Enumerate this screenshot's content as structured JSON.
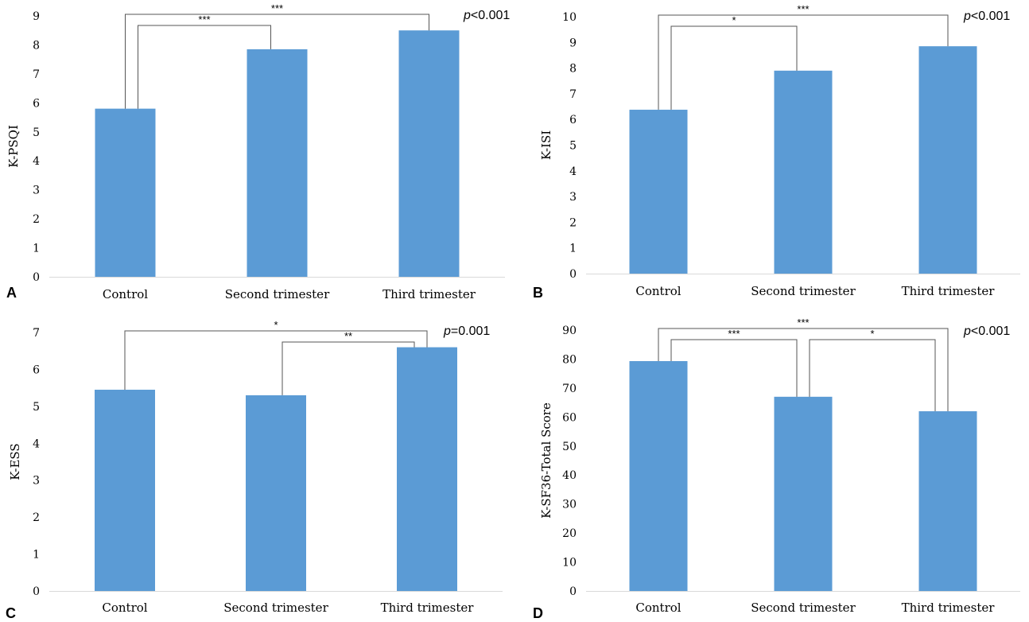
{
  "chart_data": [
    {
      "type": "bar",
      "panel_label": "A",
      "categories": [
        "Control",
        "Second trimester",
        "Third trimester"
      ],
      "values": [
        5.8,
        7.85,
        8.5
      ],
      "ylabel": "K-PSQI",
      "ylim": [
        0,
        9
      ],
      "yticks": [
        0,
        1,
        2,
        3,
        4,
        5,
        6,
        7,
        8,
        9
      ],
      "p_text": {
        "prefix": "p",
        "rest": "<0.001"
      },
      "comparisons": [
        {
          "from": 0,
          "to": 2,
          "label": "***",
          "level": 1
        },
        {
          "from": 0,
          "to": 1,
          "label": "***",
          "level": 0
        }
      ],
      "color": "#5b9bd5"
    },
    {
      "type": "bar",
      "panel_label": "B",
      "categories": [
        "Control",
        "Second trimester",
        "Third trimester"
      ],
      "values": [
        6.38,
        7.9,
        8.85
      ],
      "ylabel": "K-ISI",
      "ylim": [
        0,
        10
      ],
      "yticks": [
        0,
        1,
        2,
        3,
        4,
        5,
        6,
        7,
        8,
        9,
        10
      ],
      "p_text": {
        "prefix": "p",
        "rest": "<0.001"
      },
      "comparisons": [
        {
          "from": 0,
          "to": 2,
          "label": "***",
          "level": 1
        },
        {
          "from": 0,
          "to": 1,
          "label": "*",
          "level": 0
        }
      ],
      "color": "#5b9bd5"
    },
    {
      "type": "bar",
      "panel_label": "C",
      "categories": [
        "Control",
        "Second trimester",
        "Third trimester"
      ],
      "values": [
        5.45,
        5.3,
        6.6
      ],
      "ylabel": "K-ESS",
      "ylim": [
        0,
        7
      ],
      "yticks": [
        0,
        1,
        2,
        3,
        4,
        5,
        6,
        7
      ],
      "p_text": {
        "prefix": "p",
        "rest": "=0.001"
      },
      "comparisons": [
        {
          "from": 0,
          "to": 2,
          "label": "*",
          "level": 1
        },
        {
          "from": 1,
          "to": 2,
          "label": "**",
          "level": 0
        }
      ],
      "color": "#5b9bd5"
    },
    {
      "type": "bar",
      "panel_label": "D",
      "categories": [
        "Control",
        "Second trimester",
        "Third trimester"
      ],
      "values": [
        79.3,
        67.0,
        62.0
      ],
      "ylabel": "K-SF36-Total Score",
      "ylim": [
        0,
        90
      ],
      "yticks": [
        0,
        10,
        20,
        30,
        40,
        50,
        60,
        70,
        80,
        90
      ],
      "p_text": {
        "prefix": "p",
        "rest": "<0.001"
      },
      "comparisons": [
        {
          "from": 0,
          "to": 2,
          "label": "***",
          "level": 1
        },
        {
          "from": 0,
          "to": 1,
          "label": "***",
          "level": 0
        },
        {
          "from": 1,
          "to": 2,
          "label": "*",
          "level": 0
        }
      ],
      "color": "#5b9bd5"
    }
  ]
}
